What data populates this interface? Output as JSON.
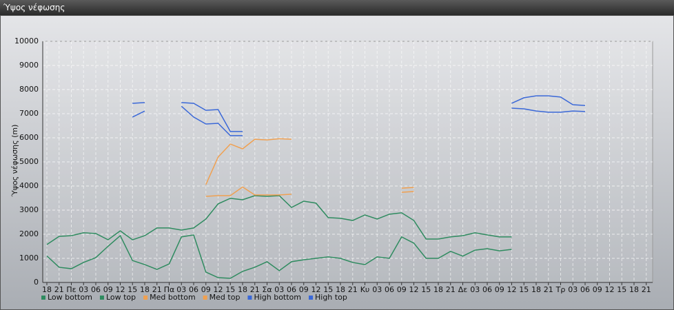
{
  "window_title": "Ύψος νέφωσης",
  "chart_data": {
    "type": "line",
    "ylabel": "Ύψος νέφωσης (m)",
    "categories": [
      "18",
      "21",
      "Πε",
      "03",
      "06",
      "09",
      "12",
      "15",
      "18",
      "21",
      "Πα",
      "03",
      "06",
      "09",
      "12",
      "15",
      "18",
      "21",
      "Σα",
      "03",
      "06",
      "09",
      "12",
      "15",
      "18",
      "21",
      "Κυ",
      "03",
      "06",
      "09",
      "12",
      "15",
      "18",
      "21",
      "Δε",
      "03",
      "06",
      "09",
      "12",
      "15",
      "18",
      "21",
      "Τρ",
      "03",
      "06",
      "09",
      "12",
      "15",
      "18",
      "21"
    ],
    "ylim": [
      0,
      10000
    ],
    "yticks": [
      0,
      1000,
      2000,
      3000,
      4000,
      5000,
      6000,
      7000,
      8000,
      9000,
      10000
    ],
    "grid": true,
    "legend": "bottom-left",
    "series": [
      {
        "name": "Low bottom",
        "color": "#2e8b5f",
        "values": [
          1100,
          630,
          570,
          830,
          1030,
          1500,
          1940,
          910,
          740,
          540,
          770,
          1890,
          1970,
          430,
          200,
          170,
          460,
          630,
          860,
          490,
          860,
          940,
          1000,
          1060,
          1000,
          830,
          740,
          1060,
          1000,
          1890,
          1630,
          1000,
          1000,
          1290,
          1090,
          1340,
          1400,
          1310,
          1370,
          null,
          null,
          null,
          null,
          null,
          null,
          null,
          null,
          null,
          null,
          null
        ]
      },
      {
        "name": "Low top",
        "color": "#2e8b5f",
        "values": [
          1570,
          1910,
          1940,
          2060,
          2030,
          1770,
          2140,
          1770,
          1940,
          2260,
          2260,
          2170,
          2260,
          2630,
          3260,
          3490,
          3430,
          3600,
          3570,
          3600,
          3110,
          3370,
          3290,
          2690,
          2660,
          2570,
          2800,
          2630,
          2830,
          2890,
          2570,
          1800,
          1800,
          1890,
          1940,
          2060,
          1970,
          1890,
          1890,
          null,
          null,
          null,
          null,
          null,
          null,
          null,
          null,
          null,
          null,
          null
        ]
      },
      {
        "name": "Med bottom",
        "color": "#f0a050",
        "values": [
          null,
          null,
          null,
          null,
          null,
          null,
          null,
          null,
          null,
          null,
          null,
          null,
          null,
          3570,
          3600,
          3600,
          3960,
          3630,
          3630,
          3630,
          3660,
          null,
          null,
          null,
          null,
          null,
          null,
          null,
          null,
          3740,
          3770,
          null,
          null,
          null,
          null,
          null,
          null,
          null,
          null,
          null,
          null,
          null,
          null,
          null,
          null,
          null,
          null,
          null,
          null,
          null
        ]
      },
      {
        "name": "Med top",
        "color": "#f0a050",
        "values": [
          null,
          null,
          null,
          null,
          null,
          null,
          null,
          null,
          null,
          null,
          null,
          null,
          null,
          4060,
          5200,
          5740,
          5540,
          5940,
          5910,
          5960,
          5940,
          null,
          null,
          null,
          null,
          null,
          null,
          null,
          null,
          3910,
          3940,
          null,
          null,
          null,
          null,
          null,
          null,
          null,
          null,
          null,
          null,
          null,
          null,
          null,
          null,
          null,
          null,
          null,
          null,
          null
        ]
      },
      {
        "name": "High bottom",
        "color": "#3a68d8",
        "values": [
          null,
          null,
          null,
          null,
          null,
          null,
          null,
          6860,
          7110,
          null,
          null,
          7310,
          6860,
          6570,
          6600,
          6090,
          6090,
          null,
          null,
          null,
          null,
          null,
          null,
          null,
          null,
          null,
          null,
          null,
          null,
          null,
          null,
          null,
          null,
          null,
          null,
          null,
          null,
          null,
          7230,
          7200,
          7110,
          7060,
          7060,
          7110,
          7090,
          null,
          null,
          null,
          null,
          null
        ]
      },
      {
        "name": "High top",
        "color": "#3a68d8",
        "values": [
          null,
          null,
          null,
          null,
          null,
          null,
          null,
          7430,
          7460,
          null,
          null,
          7460,
          7430,
          7140,
          7170,
          6260,
          6260,
          null,
          null,
          null,
          null,
          null,
          null,
          null,
          null,
          null,
          null,
          null,
          null,
          null,
          null,
          null,
          null,
          null,
          null,
          null,
          null,
          null,
          7430,
          7660,
          7740,
          7740,
          7690,
          7370,
          7340,
          null,
          null,
          null,
          null,
          null
        ]
      }
    ]
  }
}
